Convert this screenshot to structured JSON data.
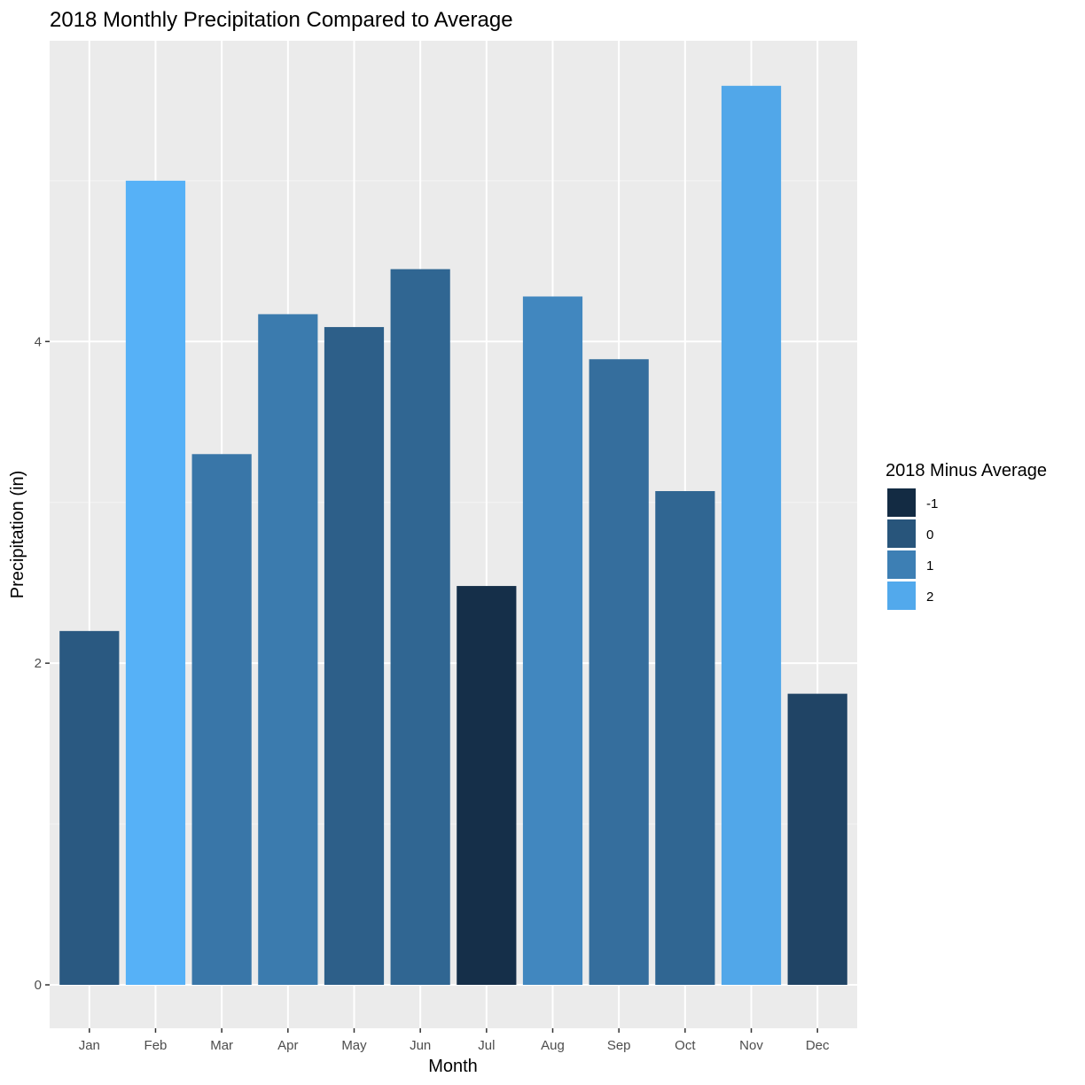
{
  "chart_data": {
    "type": "bar",
    "title": "2018 Monthly Precipitation Compared to Average",
    "xlabel": "Month",
    "ylabel": "Precipitation (in)",
    "categories": [
      "Jan",
      "Feb",
      "Mar",
      "Apr",
      "May",
      "Jun",
      "Jul",
      "Aug",
      "Sep",
      "Oct",
      "Nov",
      "Dec"
    ],
    "values": [
      2.2,
      5.0,
      3.3,
      4.17,
      4.09,
      4.45,
      2.48,
      4.28,
      3.89,
      3.07,
      5.59,
      1.81
    ],
    "diff_values": [
      0.1,
      2.2,
      0.8,
      0.9,
      0.25,
      0.4,
      -0.9,
      1.2,
      0.6,
      0.4,
      1.95,
      -0.4
    ],
    "ylim": [
      -0.27,
      5.87
    ],
    "yticks": [
      0,
      2,
      4
    ],
    "grid": true,
    "legend": {
      "title": "2018 Minus Average",
      "position": "right",
      "entries": [
        "-1",
        "0",
        "1",
        "2"
      ],
      "range": [
        -1,
        2.2
      ]
    },
    "colors": {
      "gradient_low": "#132B43",
      "gradient_high": "#56B1F7",
      "panel_background": "#EBEBEB",
      "grid_major": "#FFFFFF",
      "grid_minor": "#F3F3F3",
      "axis_text": "#4D4D4D"
    }
  }
}
